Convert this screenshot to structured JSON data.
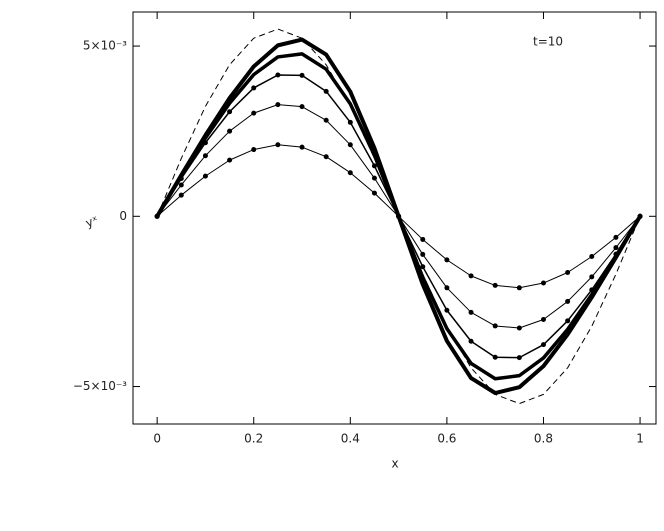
{
  "chart_data": {
    "type": "line",
    "annotation": "t=10",
    "xlabel": "x",
    "ylabel": "yˣ",
    "x": [
      0,
      0.05,
      0.1,
      0.15,
      0.2,
      0.25,
      0.3,
      0.35,
      0.4,
      0.45,
      0.5,
      0.55,
      0.6,
      0.65,
      0.7,
      0.75,
      0.8,
      0.85,
      0.9,
      0.95,
      1
    ],
    "xlim": [
      -0.05,
      1.033
    ],
    "ylim": [
      -0.0061,
      0.006
    ],
    "xticks": [
      0,
      0.2,
      0.4,
      0.6,
      0.8,
      1
    ],
    "yticks": [
      {
        "value": -0.005,
        "label": "−5×10⁻³"
      },
      0,
      {
        "value": 0.005,
        "label": "5×10⁻³"
      }
    ],
    "series": [
      {
        "color": "#000000",
        "width": 1,
        "dashed": true,
        "markers": false,
        "values": [
          0,
          0.0017,
          0.00323,
          0.00445,
          0.00523,
          0.0055,
          0.00523,
          0.00445,
          0.00323,
          0.0017,
          0,
          -0.0017,
          -0.00323,
          -0.00445,
          -0.00523,
          -0.0055,
          -0.00523,
          -0.00445,
          -0.00323,
          -0.0017,
          0
        ]
      },
      {
        "color": "#000000",
        "width": 4,
        "dashed": false,
        "markers": false,
        "values": [
          0,
          0.00121,
          0.00238,
          0.00347,
          0.0044,
          0.00502,
          0.00519,
          0.00475,
          0.00366,
          0.002,
          0,
          -0.002,
          -0.00366,
          -0.00475,
          -0.00519,
          -0.00502,
          -0.0044,
          -0.00347,
          -0.00238,
          -0.00121,
          0
        ]
      },
      {
        "color": "#000000",
        "width": 3.5,
        "dashed": false,
        "markers": false,
        "values": [
          0,
          0.00117,
          0.0023,
          0.00332,
          0.00416,
          0.00468,
          0.00477,
          0.00432,
          0.0033,
          0.00179,
          0,
          -0.00179,
          -0.0033,
          -0.00432,
          -0.00477,
          -0.00468,
          -0.00416,
          -0.00332,
          -0.0023,
          -0.00117,
          0
        ]
      },
      {
        "color": "#000000",
        "width": 1.5,
        "dashed": false,
        "markers": true,
        "values": [
          0,
          0.00111,
          0.00216,
          0.00307,
          0.00377,
          0.00415,
          0.00414,
          0.00367,
          0.00276,
          0.00148,
          0,
          -0.00148,
          -0.00276,
          -0.00367,
          -0.00414,
          -0.00415,
          -0.00377,
          -0.00307,
          -0.00216,
          -0.00111,
          0
        ]
      },
      {
        "color": "#000000",
        "width": 1,
        "dashed": false,
        "markers": true,
        "values": [
          0,
          0.00092,
          0.00178,
          0.0025,
          0.00303,
          0.00328,
          0.00322,
          0.00282,
          0.0021,
          0.00112,
          0,
          -0.00112,
          -0.0021,
          -0.00282,
          -0.00322,
          -0.00328,
          -0.00303,
          -0.0025,
          -0.00178,
          -0.00092,
          0
        ]
      },
      {
        "color": "#000000",
        "width": 1,
        "dashed": false,
        "markers": true,
        "values": [
          0,
          0.00062,
          0.00118,
          0.00165,
          0.00196,
          0.0021,
          0.00203,
          0.00175,
          0.00128,
          0.00068,
          0,
          -0.00068,
          -0.00128,
          -0.00175,
          -0.00203,
          -0.0021,
          -0.00196,
          -0.00165,
          -0.00118,
          -0.00062,
          0
        ]
      }
    ]
  }
}
